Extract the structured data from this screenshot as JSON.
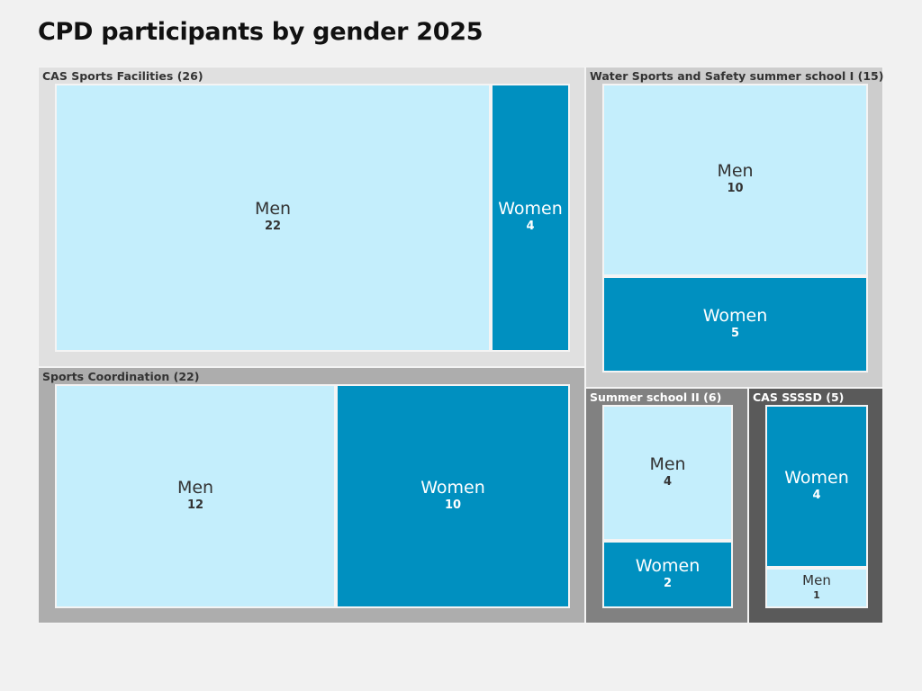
{
  "chart_data": {
    "type": "treemap",
    "title": "CPD participants by gender 2025",
    "colors": {
      "Men": "#c4eefc",
      "Women": "#0090c0"
    },
    "groups": [
      {
        "name": "CAS Sports Facilities",
        "total": 26,
        "color": "#e0e0e0",
        "children": [
          {
            "name": "Men",
            "value": 22
          },
          {
            "name": "Women",
            "value": 4
          }
        ]
      },
      {
        "name": "Water Sports and Safety summer school I",
        "total": 15,
        "color": "#cdcdcd",
        "children": [
          {
            "name": "Men",
            "value": 10
          },
          {
            "name": "Women",
            "value": 5
          }
        ]
      },
      {
        "name": "Sports Coordination",
        "total": 22,
        "color": "#adadad",
        "children": [
          {
            "name": "Men",
            "value": 12
          },
          {
            "name": "Women",
            "value": 10
          }
        ]
      },
      {
        "name": "Summer school II",
        "total": 6,
        "color": "#818181",
        "children": [
          {
            "name": "Men",
            "value": 4
          },
          {
            "name": "Women",
            "value": 2
          }
        ]
      },
      {
        "name": "CAS SSSSD",
        "total": 5,
        "color": "#5a5a5a",
        "children": [
          {
            "name": "Women",
            "value": 4
          },
          {
            "name": "Men",
            "value": 1
          }
        ]
      }
    ]
  }
}
